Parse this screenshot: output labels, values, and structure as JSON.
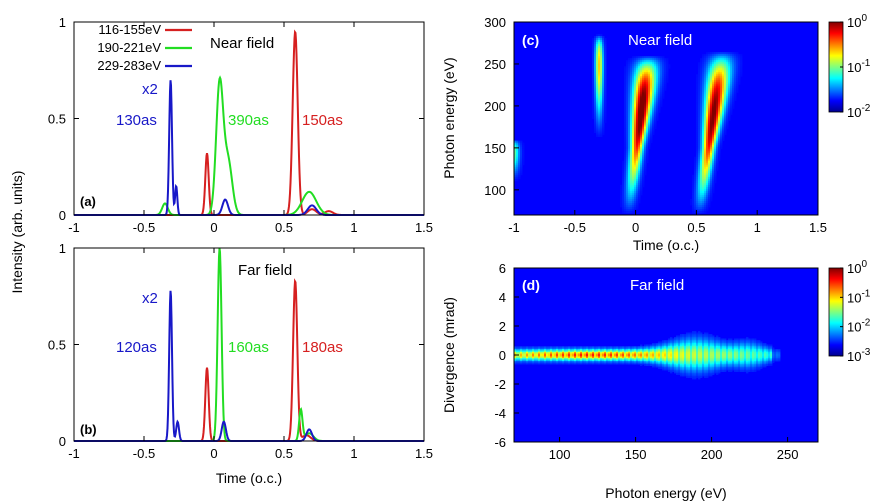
{
  "figure": {
    "shared_ylabel": "Intensity (arb. units)"
  },
  "chart_data": [
    {
      "id": "a",
      "type": "line",
      "panel_label": "(a)",
      "title": "Near field",
      "xlabel": "",
      "ylabel": "",
      "xlim": [
        -1,
        1.5
      ],
      "ylim": [
        0,
        1
      ],
      "x_ticks": [
        "-1",
        "-0.5",
        "0",
        "0.5",
        "1",
        "1.5"
      ],
      "y_ticks": [
        "0",
        "0.5",
        "1"
      ],
      "legend": {
        "position": "top-left"
      },
      "series": [
        {
          "name": "116-155eV",
          "color": "#d62020",
          "peaks": [
            [
              -0.05,
              0.32,
              0.012
            ],
            [
              0.58,
              0.95,
              0.018
            ],
            [
              0.7,
              0.03,
              0.03
            ],
            [
              0.82,
              0.02,
              0.03
            ]
          ]
        },
        {
          "name": "190-221eV",
          "color": "#22dd22",
          "peaks": [
            [
              -0.35,
              0.06,
              0.02
            ],
            [
              0.04,
              0.67,
              0.025
            ],
            [
              0.1,
              0.28,
              0.03
            ],
            [
              0.68,
              0.12,
              0.05
            ]
          ]
        },
        {
          "name": "229-283eV",
          "color": "#1818c8",
          "peaks": [
            [
              -0.31,
              0.7,
              0.01
            ],
            [
              -0.27,
              0.15,
              0.008
            ],
            [
              0.08,
              0.08,
              0.02
            ],
            [
              0.7,
              0.05,
              0.03
            ]
          ]
        }
      ],
      "annotations": [
        {
          "text": "x2",
          "color": "#1818c8"
        },
        {
          "text": "130as",
          "color": "#1818c8"
        },
        {
          "text": "390as",
          "color": "#22dd22"
        },
        {
          "text": "150as",
          "color": "#d62020"
        }
      ]
    },
    {
      "id": "b",
      "type": "line",
      "panel_label": "(b)",
      "title": "Far field",
      "xlabel": "Time (o.c.)",
      "ylabel": "",
      "xlim": [
        -1,
        1.5
      ],
      "ylim": [
        0,
        1
      ],
      "x_ticks": [
        "-1",
        "-0.5",
        "0",
        "0.5",
        "1",
        "1.5"
      ],
      "y_ticks": [
        "0",
        "0.5",
        "1"
      ],
      "series": [
        {
          "name": "116-155eV",
          "color": "#d62020",
          "peaks": [
            [
              -0.05,
              0.38,
              0.012
            ],
            [
              0.58,
              0.83,
              0.015
            ],
            [
              0.66,
              0.03,
              0.03
            ]
          ]
        },
        {
          "name": "190-221eV",
          "color": "#22dd22",
          "peaks": [
            [
              0.04,
              1.0,
              0.014
            ],
            [
              0.62,
              0.16,
              0.012
            ],
            [
              0.68,
              0.04,
              0.03
            ]
          ]
        },
        {
          "name": "229-283eV",
          "color": "#1818c8",
          "peaks": [
            [
              -0.31,
              0.78,
              0.01
            ],
            [
              -0.26,
              0.1,
              0.01
            ],
            [
              0.07,
              0.1,
              0.015
            ],
            [
              0.68,
              0.06,
              0.02
            ]
          ]
        }
      ],
      "annotations": [
        {
          "text": "x2",
          "color": "#1818c8"
        },
        {
          "text": "120as",
          "color": "#1818c8"
        },
        {
          "text": "160as",
          "color": "#22dd22"
        },
        {
          "text": "180as",
          "color": "#d62020"
        }
      ]
    },
    {
      "id": "c",
      "type": "heatmap",
      "panel_label": "(c)",
      "title": "Near field",
      "xlabel": "Time (o.c.)",
      "ylabel": "Photon energy (eV)",
      "xlim": [
        -1,
        1.5
      ],
      "ylim": [
        70,
        300
      ],
      "x_ticks": [
        "-1",
        "-0.5",
        "0",
        "0.5",
        "1",
        "1.5"
      ],
      "y_ticks": [
        "100",
        "150",
        "200",
        "250",
        "300"
      ],
      "colorbar": {
        "scale": "log",
        "ticks": [
          {
            "base": "10",
            "exp": "0"
          },
          {
            "base": "10",
            "exp": "-1"
          },
          {
            "base": "10",
            "exp": "-2"
          }
        ]
      },
      "features": [
        {
          "kind": "chirped-burst",
          "t_at_70eV": -0.06,
          "t_at_300eV": 0.14,
          "peak_eV": 195,
          "peak_level": 0.95,
          "energy_span": [
            70,
            260
          ]
        },
        {
          "kind": "chirped-burst",
          "t_at_70eV": 0.52,
          "t_at_300eV": 0.75,
          "peak_eV": 190,
          "peak_level": 0.9,
          "energy_span": [
            70,
            265
          ]
        },
        {
          "kind": "narrow-burst",
          "t_center": -0.3,
          "peak_eV": 250,
          "peak_level": 0.55,
          "energy_span": [
            160,
            285
          ]
        },
        {
          "kind": "edge-blob",
          "t_center": -1.0,
          "peak_eV": 145,
          "peak_level": 0.35,
          "energy_span": [
            110,
            160
          ]
        }
      ]
    },
    {
      "id": "d",
      "type": "heatmap",
      "panel_label": "(d)",
      "title": "Far field",
      "xlabel": "Photon energy (eV)",
      "ylabel": "Divergence (mrad)",
      "xlim": [
        70,
        270
      ],
      "ylim": [
        -6,
        6
      ],
      "x_ticks": [
        "100",
        "150",
        "200",
        "250"
      ],
      "y_ticks": [
        "6",
        "4",
        "2",
        "0",
        "-2",
        "-4",
        "-6"
      ],
      "colorbar": {
        "scale": "log",
        "ticks": [
          {
            "base": "10",
            "exp": "0"
          },
          {
            "base": "10",
            "exp": "-1"
          },
          {
            "base": "10",
            "exp": "-2"
          },
          {
            "base": "10",
            "exp": "-3"
          }
        ]
      },
      "features": [
        {
          "kind": "horizontal-band",
          "center_mrad": 0,
          "energy_span": [
            70,
            245
          ],
          "peak_eV": 120,
          "peak_level": 0.75
        }
      ]
    }
  ]
}
